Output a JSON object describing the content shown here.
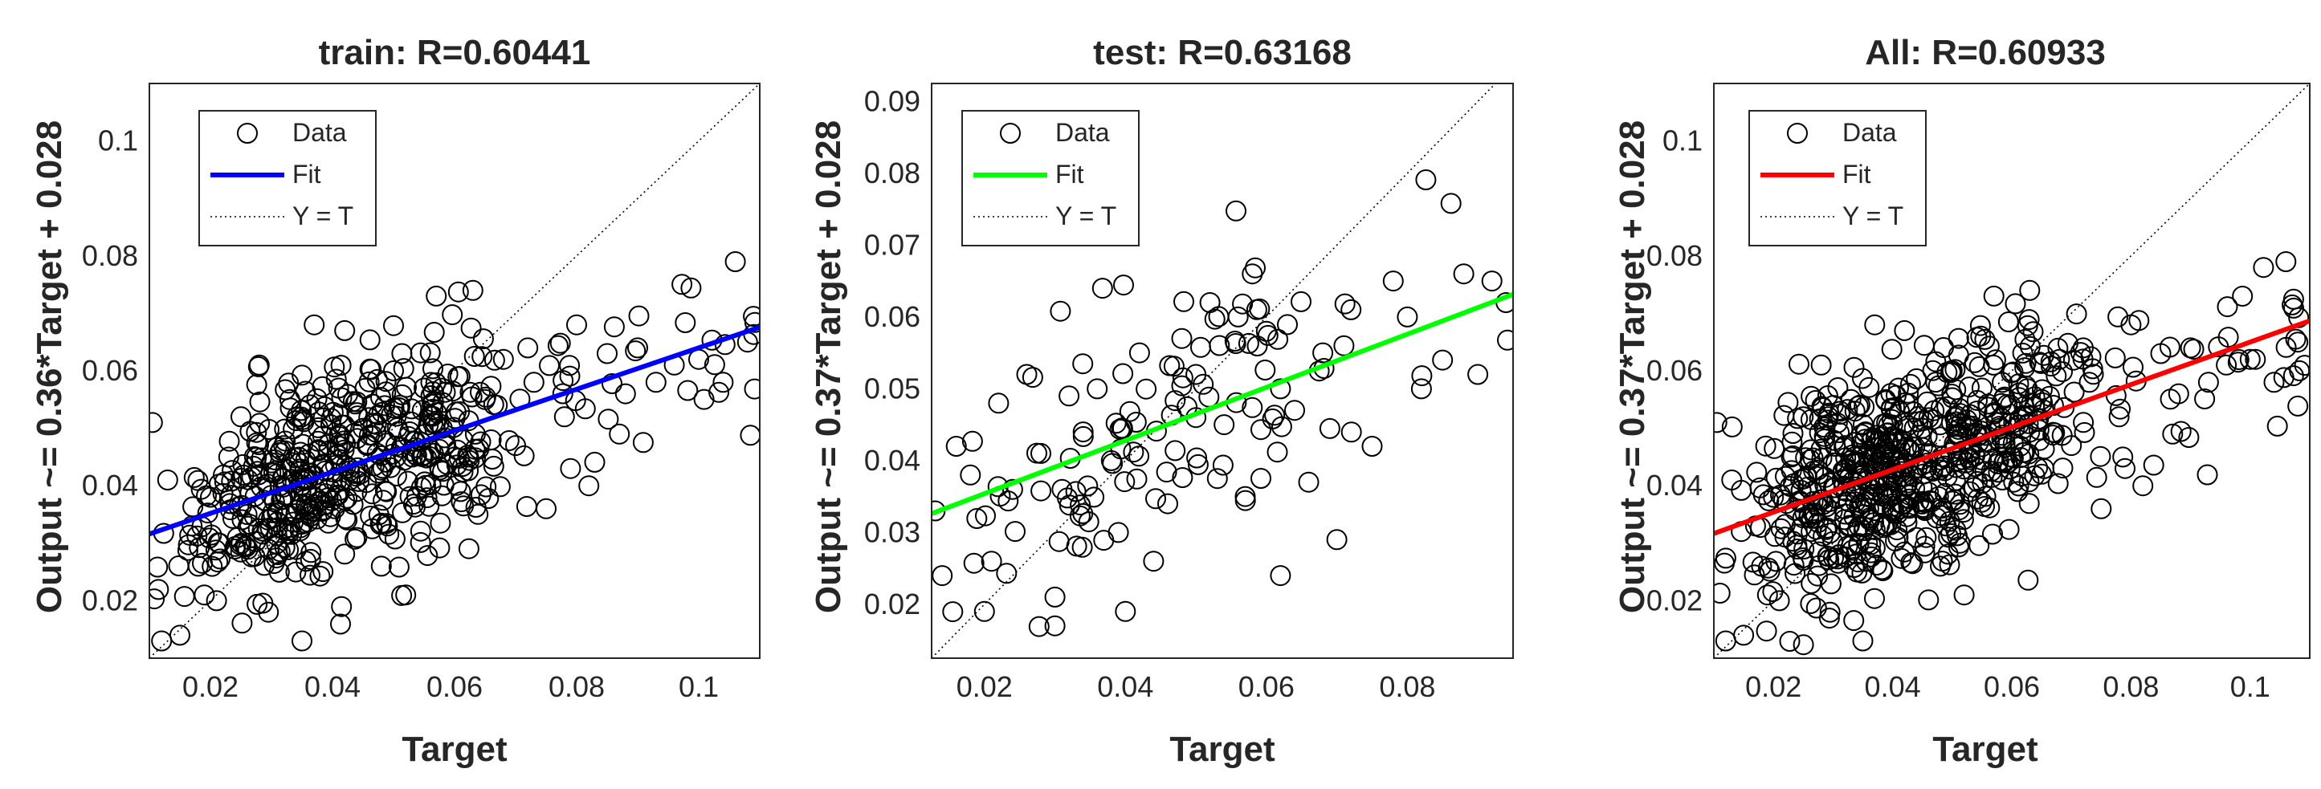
{
  "chart_data": [
    {
      "type": "scatter",
      "title": "train: R=0.60441",
      "xlabel": "Target",
      "ylabel": "Output ~= 0.36*Target + 0.028",
      "xlim": [
        0.01,
        0.11
      ],
      "ylim": [
        0.01,
        0.11
      ],
      "xticks": [
        "0.02",
        "0.04",
        "0.06",
        "0.08",
        "0.1"
      ],
      "yticks": [
        "0.02",
        "0.04",
        "0.06",
        "0.08",
        "0.1"
      ],
      "legend": [
        "Data",
        "Fit",
        "Y = T"
      ],
      "legend_position": "top-left",
      "fit": {
        "slope": 0.36,
        "intercept": 0.028,
        "color": "#0000ff"
      },
      "identity_line": true,
      "n_points": 560,
      "seed": 11,
      "points": {
        "x": [
          0.0105,
          0.012,
          0.013,
          0.015,
          0.017,
          0.019,
          0.02,
          0.021,
          0.023,
          0.025,
          0.026,
          0.028,
          0.03,
          0.031,
          0.033,
          0.035,
          0.036,
          0.037,
          0.04,
          0.042,
          0.045,
          0.048,
          0.05,
          0.052,
          0.055,
          0.057,
          0.06,
          0.063,
          0.065,
          0.068,
          0.07,
          0.073,
          0.075,
          0.078,
          0.08,
          0.082,
          0.085,
          0.088,
          0.09,
          0.093,
          0.096,
          0.1,
          0.104,
          0.106,
          0.108,
          0.0295,
          0.034,
          0.044,
          0.053,
          0.061,
          0.067,
          0.072,
          0.079,
          0.087,
          0.041,
          0.024,
          0.018,
          0.032,
          0.049,
          0.058
        ],
        "y": [
          0.051,
          0.013,
          0.041,
          0.014,
          0.033,
          0.021,
          0.038,
          0.02,
          0.045,
          0.052,
          0.035,
          0.061,
          0.044,
          0.028,
          0.055,
          0.013,
          0.036,
          0.068,
          0.041,
          0.067,
          0.05,
          0.026,
          0.06,
          0.021,
          0.057,
          0.073,
          0.045,
          0.074,
          0.055,
          0.062,
          0.047,
          0.058,
          0.036,
          0.052,
          0.068,
          0.04,
          0.063,
          0.056,
          0.064,
          0.058,
          0.061,
          0.062,
          0.058,
          0.079,
          0.065,
          0.018,
          0.025,
          0.031,
          0.046,
          0.039,
          0.054,
          0.064,
          0.043,
          0.049,
          0.057,
          0.029,
          0.026,
          0.047,
          0.033,
          0.05
        ]
      }
    },
    {
      "type": "scatter",
      "title": "test: R=0.63168",
      "xlabel": "Target",
      "ylabel": "Output ~= 0.37*Target + 0.028",
      "xlim": [
        0.0125,
        0.095
      ],
      "ylim": [
        0.0125,
        0.0925
      ],
      "xticks": [
        "0.02",
        "0.04",
        "0.06",
        "0.08"
      ],
      "yticks": [
        "0.02",
        "0.03",
        "0.04",
        "0.05",
        "0.06",
        "0.07",
        "0.08",
        "0.09"
      ],
      "legend": [
        "Data",
        "Fit",
        "Y = T"
      ],
      "legend_position": "top-left",
      "fit": {
        "slope": 0.37,
        "intercept": 0.028,
        "color": "#00ff00"
      },
      "identity_line": true,
      "n_points": 150,
      "seed": 23,
      "points": {
        "x": [
          0.013,
          0.014,
          0.016,
          0.018,
          0.02,
          0.022,
          0.024,
          0.026,
          0.028,
          0.03,
          0.03,
          0.032,
          0.034,
          0.036,
          0.038,
          0.04,
          0.042,
          0.044,
          0.046,
          0.048,
          0.05,
          0.052,
          0.054,
          0.056,
          0.058,
          0.06,
          0.062,
          0.064,
          0.066,
          0.068,
          0.07,
          0.072,
          0.075,
          0.078,
          0.08,
          0.082,
          0.085,
          0.088,
          0.09,
          0.092,
          0.094,
          0.071,
          0.062,
          0.039,
          0.031,
          0.021,
          0.057,
          0.05
        ],
        "y": [
          0.033,
          0.024,
          0.042,
          0.038,
          0.019,
          0.048,
          0.036,
          0.052,
          0.041,
          0.021,
          0.017,
          0.049,
          0.044,
          0.05,
          0.04,
          0.019,
          0.055,
          0.026,
          0.034,
          0.057,
          0.052,
          0.062,
          0.045,
          0.06,
          0.066,
          0.058,
          0.024,
          0.047,
          0.037,
          0.055,
          0.029,
          0.061,
          0.042,
          0.065,
          0.06,
          0.05,
          0.054,
          0.066,
          0.052,
          0.065,
          0.062,
          0.056,
          0.05,
          0.03,
          0.036,
          0.026,
          0.035,
          0.046
        ]
      }
    },
    {
      "type": "scatter",
      "title": "All: R=0.60933",
      "xlabel": "Target",
      "ylabel": "Output ~= 0.37*Target + 0.028",
      "xlim": [
        0.01,
        0.11
      ],
      "ylim": [
        0.01,
        0.11
      ],
      "xticks": [
        "0.02",
        "0.04",
        "0.06",
        "0.08",
        "0.1"
      ],
      "yticks": [
        "0.02",
        "0.04",
        "0.06",
        "0.08",
        "0.1"
      ],
      "legend": [
        "Data",
        "Fit",
        "Y = T"
      ],
      "legend_position": "top-left",
      "fit": {
        "slope": 0.37,
        "intercept": 0.028,
        "color": "#ff0000"
      },
      "identity_line": true,
      "n_points": 720,
      "seed": 37,
      "points": {
        "x": [
          0.0105,
          0.012,
          0.013,
          0.015,
          0.017,
          0.019,
          0.02,
          0.021,
          0.023,
          0.025,
          0.026,
          0.028,
          0.03,
          0.031,
          0.033,
          0.035,
          0.036,
          0.037,
          0.04,
          0.042,
          0.045,
          0.048,
          0.05,
          0.052,
          0.055,
          0.057,
          0.06,
          0.063,
          0.065,
          0.068,
          0.07,
          0.073,
          0.075,
          0.078,
          0.08,
          0.082,
          0.085,
          0.088,
          0.09,
          0.093,
          0.096,
          0.1,
          0.104,
          0.106,
          0.108,
          0.0295,
          0.034,
          0.044,
          0.053,
          0.061,
          0.067,
          0.072,
          0.079,
          0.087,
          0.041,
          0.024,
          0.018,
          0.032,
          0.049,
          0.058
        ],
        "y": [
          0.051,
          0.013,
          0.041,
          0.014,
          0.033,
          0.021,
          0.038,
          0.02,
          0.045,
          0.052,
          0.035,
          0.061,
          0.044,
          0.028,
          0.055,
          0.013,
          0.036,
          0.068,
          0.041,
          0.067,
          0.05,
          0.026,
          0.06,
          0.021,
          0.057,
          0.073,
          0.045,
          0.074,
          0.055,
          0.062,
          0.047,
          0.058,
          0.036,
          0.052,
          0.068,
          0.04,
          0.063,
          0.056,
          0.064,
          0.058,
          0.061,
          0.062,
          0.058,
          0.079,
          0.065,
          0.018,
          0.025,
          0.031,
          0.046,
          0.039,
          0.054,
          0.064,
          0.043,
          0.049,
          0.057,
          0.029,
          0.026,
          0.047,
          0.033,
          0.05
        ]
      }
    }
  ]
}
